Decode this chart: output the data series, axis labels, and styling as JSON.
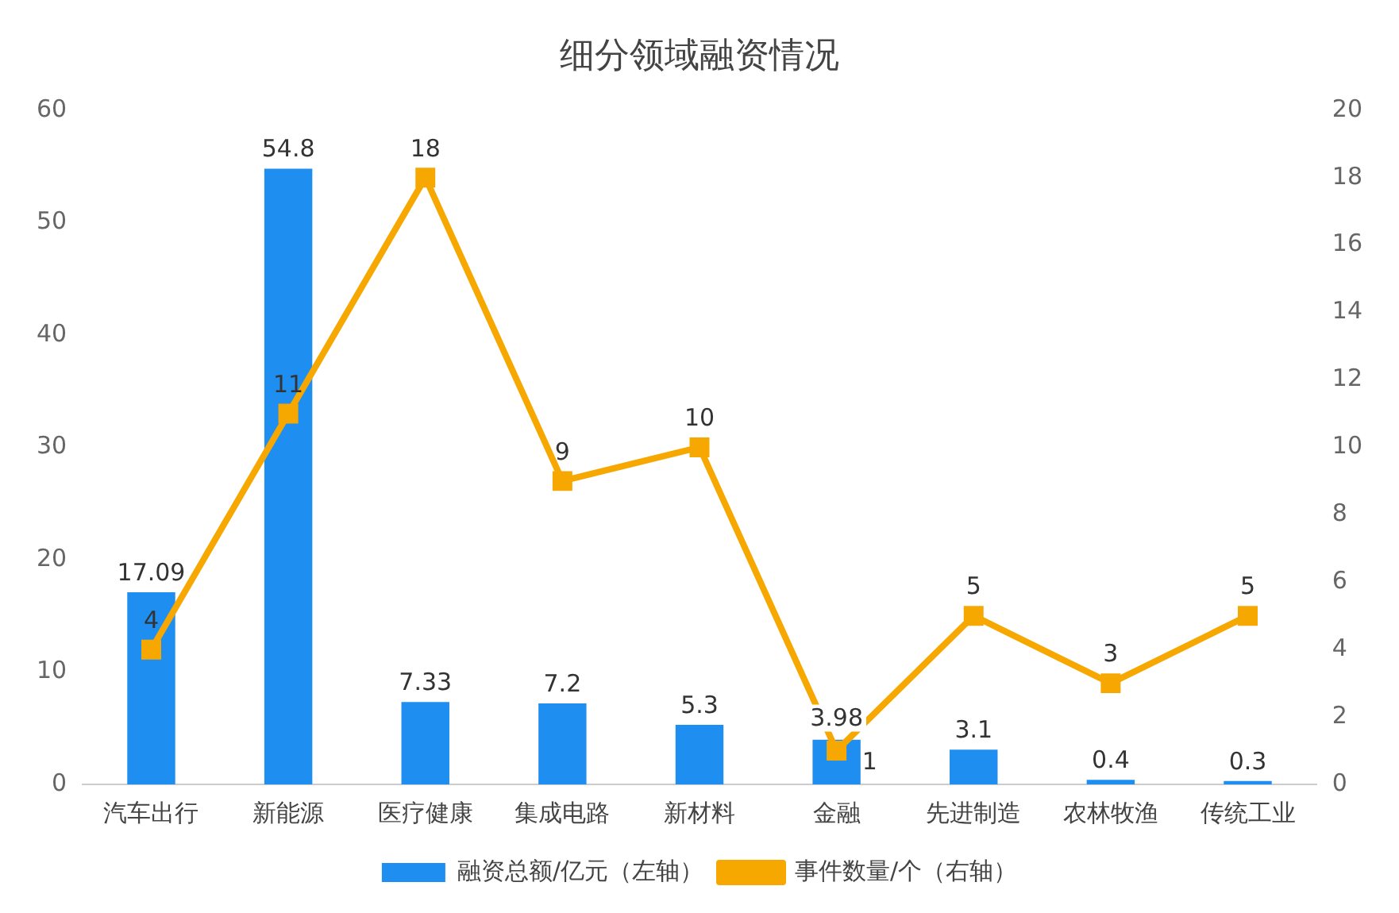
{
  "chart_data": {
    "type": "bar",
    "title": "细分领域融资情况",
    "categories": [
      "汽车出行",
      "新能源",
      "医疗健康",
      "集成电路",
      "新材料",
      "金融",
      "先进制造",
      "农林牧渔",
      "传统工业"
    ],
    "series": [
      {
        "name": "融资总额/亿元（左轴）",
        "color": "#1f8ef1",
        "values": [
          17.09,
          54.8,
          7.33,
          7.2,
          5.3,
          3.98,
          3.1,
          0.4,
          0.3
        ]
      },
      {
        "name": "事件数量/个（右轴）",
        "type": "line",
        "axis": "y2",
        "color": "#f7a800",
        "marker": "square",
        "values": [
          4,
          11,
          18,
          9,
          10,
          1,
          5,
          3,
          5
        ]
      }
    ],
    "ylim": [
      0,
      60
    ],
    "yticks": [
      0,
      10,
      20,
      30,
      40,
      50,
      60
    ],
    "y2lim": [
      0,
      20
    ],
    "y2ticks": [
      0,
      2,
      4,
      6,
      8,
      10,
      12,
      14,
      16,
      18,
      20
    ],
    "grid": false,
    "legend": "bottom",
    "data_labels": true
  }
}
